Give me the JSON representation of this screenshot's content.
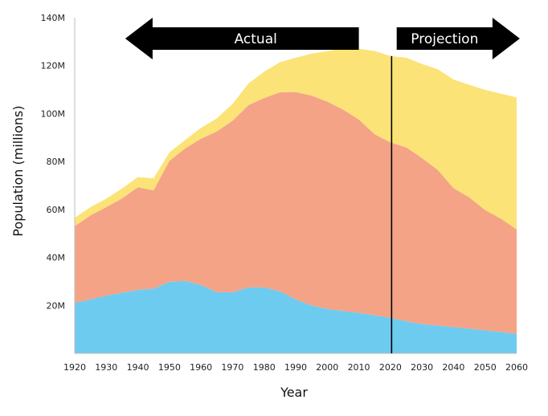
{
  "chart_data": {
    "type": "area",
    "stacked": true,
    "title": "",
    "xlabel": "Year",
    "ylabel": "Population (millions)",
    "xlim": [
      1920,
      2060
    ],
    "ylim": [
      0,
      140
    ],
    "x_ticks": [
      1920,
      1930,
      1940,
      1950,
      1960,
      1970,
      1980,
      1990,
      2000,
      2010,
      2020,
      2030,
      2040,
      2050,
      2060
    ],
    "y_ticks": [
      {
        "value": 20,
        "label": "20M"
      },
      {
        "value": 40,
        "label": "40M"
      },
      {
        "value": 60,
        "label": "60M"
      },
      {
        "value": 80,
        "label": "80M"
      },
      {
        "value": 100,
        "label": "100M"
      },
      {
        "value": 120,
        "label": "120M"
      },
      {
        "value": 140,
        "label": "140M"
      }
    ],
    "grid": false,
    "legend": "none",
    "x": [
      1920,
      1925,
      1930,
      1935,
      1940,
      1945,
      1950,
      1955,
      1960,
      1965,
      1970,
      1975,
      1980,
      1985,
      1990,
      1995,
      2000,
      2005,
      2010,
      2015,
      2020,
      2025,
      2030,
      2035,
      2040,
      2045,
      2050,
      2055,
      2060
    ],
    "series": [
      {
        "color": "#6ecbf0",
        "values": [
          21,
          22.5,
          24,
          25.3,
          26.5,
          27,
          29.8,
          30.2,
          28.5,
          25.5,
          25.5,
          27.5,
          27.5,
          25.9,
          22.5,
          20,
          18.5,
          17.7,
          16.9,
          15.9,
          14.8,
          13.4,
          12.2,
          11.6,
          11,
          10.3,
          9.6,
          8.9,
          8.1
        ]
      },
      {
        "color": "#f4a387",
        "values": [
          32,
          35,
          37,
          39.3,
          42.8,
          41,
          50.5,
          55.3,
          61,
          67,
          71.5,
          76,
          79,
          83,
          86.5,
          87.5,
          86.5,
          84,
          80.6,
          75.5,
          73.2,
          72.5,
          69.3,
          64.9,
          57.9,
          54.7,
          50.2,
          47.3,
          43.5
        ]
      },
      {
        "color": "#fbe377",
        "values": [
          3.5,
          3.5,
          3.5,
          4.2,
          4.2,
          5,
          3.5,
          3.5,
          4.5,
          5.5,
          7,
          9,
          11,
          12.5,
          14.3,
          17.5,
          21,
          25.5,
          29.5,
          34.7,
          36,
          37.4,
          39.2,
          42,
          45.3,
          47,
          50.1,
          52.1,
          55.1
        ]
      }
    ],
    "divider_x": 2020,
    "annotations": [
      {
        "text": "Actual",
        "direction": "left",
        "range": [
          1936,
          2010
        ]
      },
      {
        "text": "Projection",
        "direction": "right",
        "range": [
          2022,
          2061
        ]
      }
    ]
  }
}
